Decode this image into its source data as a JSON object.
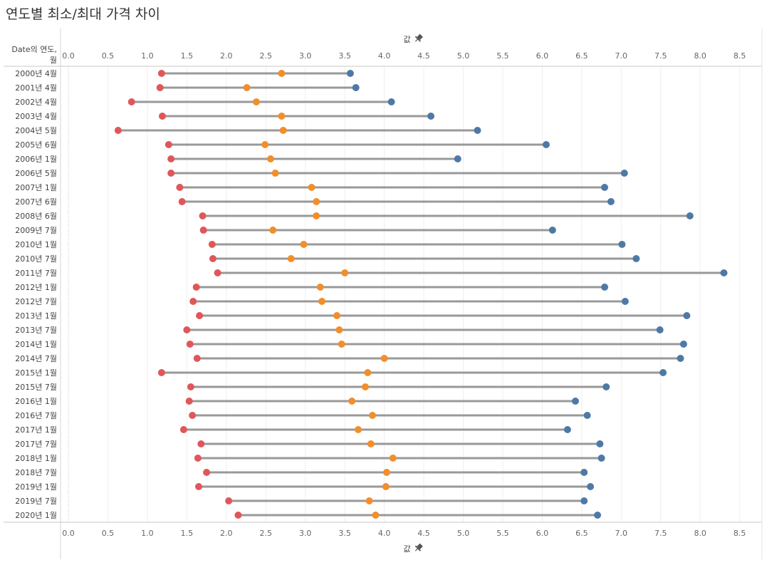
{
  "title": "연도별 최소/최대 가격 차이",
  "chart_data": {
    "type": "dumbbell",
    "row_header_line1": "Date의 연도,",
    "row_header_line2": "월",
    "axis_label": "값",
    "pin_icon": "pin-icon",
    "xlim": [
      0,
      8.5
    ],
    "x_ticks": [
      "0.0",
      "0.5",
      "1.0",
      "1.5",
      "2.0",
      "2.5",
      "3.0",
      "3.5",
      "4.0",
      "4.5",
      "5.0",
      "5.5",
      "6.0",
      "6.5",
      "7.0",
      "7.5",
      "8.0",
      "8.5"
    ],
    "grid": true,
    "colors": {
      "min": "#e05759",
      "mid": "#f28e2b",
      "max": "#4e79a7",
      "line": "#999999"
    },
    "rows": [
      {
        "label": "2000년 4월",
        "min": 1.18,
        "mid": 2.7,
        "max": 3.57
      },
      {
        "label": "2001년 4월",
        "min": 1.16,
        "mid": 2.26,
        "max": 3.64
      },
      {
        "label": "2002년 4월",
        "min": 0.8,
        "mid": 2.38,
        "max": 4.09
      },
      {
        "label": "2003년 4월",
        "min": 1.19,
        "mid": 2.7,
        "max": 4.59
      },
      {
        "label": "2004년 5월",
        "min": 0.63,
        "mid": 2.72,
        "max": 5.18
      },
      {
        "label": "2005년 6월",
        "min": 1.27,
        "mid": 2.49,
        "max": 6.05
      },
      {
        "label": "2006년 1월",
        "min": 1.3,
        "mid": 2.56,
        "max": 4.93
      },
      {
        "label": "2006년 5월",
        "min": 1.3,
        "mid": 2.62,
        "max": 7.04
      },
      {
        "label": "2007년 1월",
        "min": 1.41,
        "mid": 3.08,
        "max": 6.79
      },
      {
        "label": "2007년 6월",
        "min": 1.44,
        "mid": 3.14,
        "max": 6.87
      },
      {
        "label": "2008년 6월",
        "min": 1.7,
        "mid": 3.14,
        "max": 7.87
      },
      {
        "label": "2009년 7월",
        "min": 1.71,
        "mid": 2.59,
        "max": 6.13
      },
      {
        "label": "2010년 1월",
        "min": 1.82,
        "mid": 2.98,
        "max": 7.01
      },
      {
        "label": "2010년 7월",
        "min": 1.83,
        "mid": 2.82,
        "max": 7.19
      },
      {
        "label": "2011년 7월",
        "min": 1.89,
        "mid": 3.5,
        "max": 8.3
      },
      {
        "label": "2012년 1월",
        "min": 1.62,
        "mid": 3.19,
        "max": 6.79
      },
      {
        "label": "2012년 7월",
        "min": 1.58,
        "mid": 3.21,
        "max": 7.05
      },
      {
        "label": "2013년 1월",
        "min": 1.66,
        "mid": 3.4,
        "max": 7.83
      },
      {
        "label": "2013년 7월",
        "min": 1.5,
        "mid": 3.43,
        "max": 7.49
      },
      {
        "label": "2014년 1월",
        "min": 1.54,
        "mid": 3.46,
        "max": 7.79
      },
      {
        "label": "2014년 7월",
        "min": 1.63,
        "mid": 4.0,
        "max": 7.75
      },
      {
        "label": "2015년 1월",
        "min": 1.18,
        "mid": 3.79,
        "max": 7.53
      },
      {
        "label": "2015년 7월",
        "min": 1.55,
        "mid": 3.76,
        "max": 6.81
      },
      {
        "label": "2016년 1월",
        "min": 1.53,
        "mid": 3.59,
        "max": 6.42
      },
      {
        "label": "2016년 7월",
        "min": 1.57,
        "mid": 3.85,
        "max": 6.57
      },
      {
        "label": "2017년 1월",
        "min": 1.46,
        "mid": 3.67,
        "max": 6.32
      },
      {
        "label": "2017년 7월",
        "min": 1.68,
        "mid": 3.83,
        "max": 6.73
      },
      {
        "label": "2018년 1월",
        "min": 1.64,
        "mid": 4.11,
        "max": 6.75
      },
      {
        "label": "2018년 7월",
        "min": 1.75,
        "mid": 4.03,
        "max": 6.53
      },
      {
        "label": "2019년 1월",
        "min": 1.65,
        "mid": 4.02,
        "max": 6.61
      },
      {
        "label": "2019년 7월",
        "min": 2.03,
        "mid": 3.81,
        "max": 6.53
      },
      {
        "label": "2020년 1월",
        "min": 2.15,
        "mid": 3.89,
        "max": 6.7
      }
    ]
  }
}
